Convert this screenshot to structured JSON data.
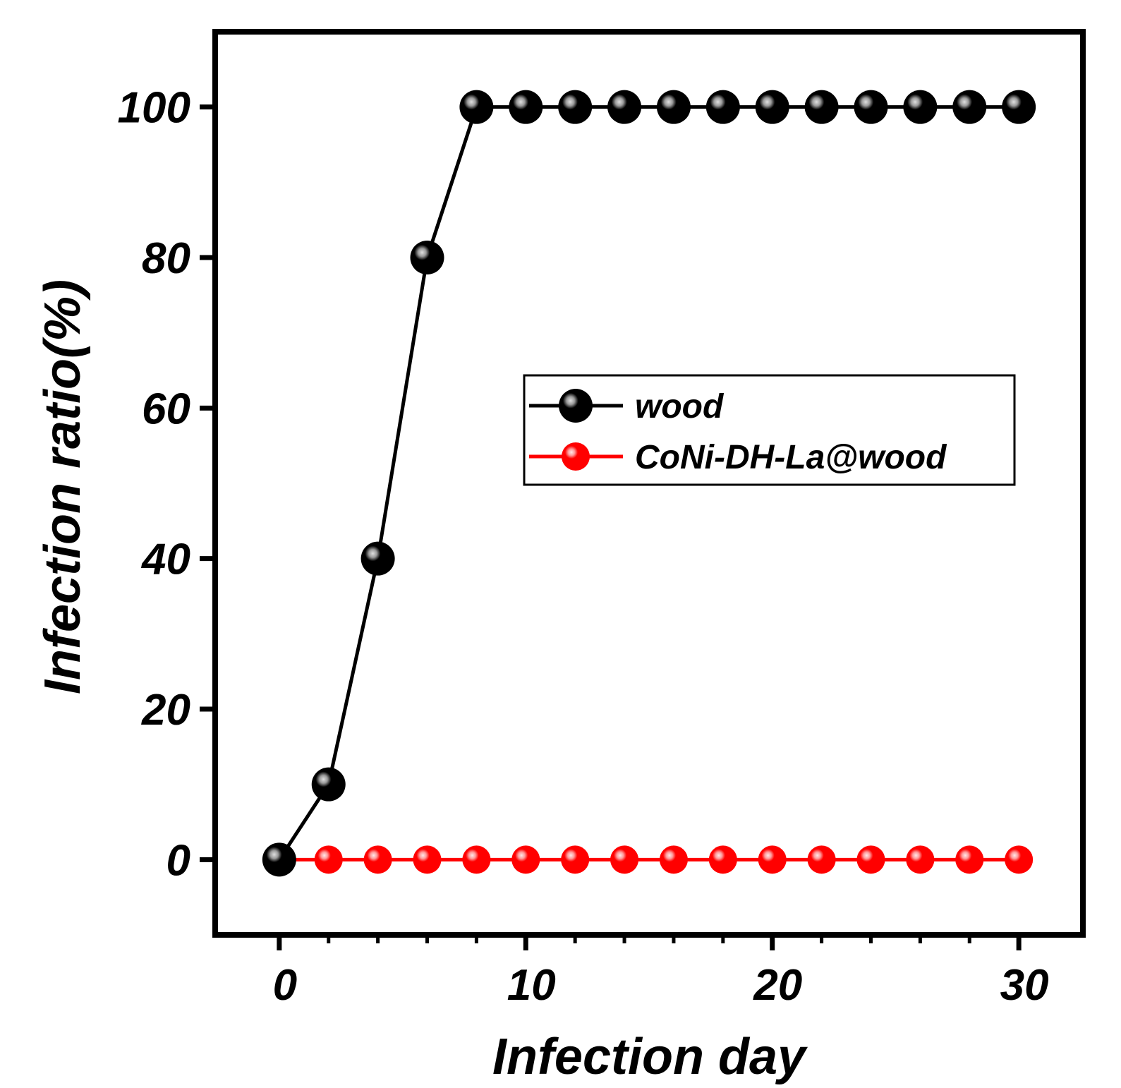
{
  "chart_data": {
    "type": "line",
    "title": "",
    "xlabel": "Infection day",
    "ylabel": "Infection ratio(%)",
    "xlim": [
      -2.6,
      32.6
    ],
    "ylim": [
      -10,
      110
    ],
    "xticks": [
      0,
      10,
      20,
      30
    ],
    "yticks": [
      0,
      20,
      40,
      60,
      80,
      100
    ],
    "legend_position": "center-right",
    "grid": false,
    "x": [
      0,
      2,
      4,
      6,
      8,
      10,
      12,
      14,
      16,
      18,
      20,
      22,
      24,
      26,
      28,
      30
    ],
    "series": [
      {
        "name": "wood",
        "color": "#000000",
        "highlight": "#bdbdbd",
        "values": [
          0,
          10,
          40,
          80,
          100,
          100,
          100,
          100,
          100,
          100,
          100,
          100,
          100,
          100,
          100,
          100
        ]
      },
      {
        "name": "CoNi-DH-La@wood",
        "color": "#ff0000",
        "highlight": "#ffd0d0",
        "values": [
          0,
          0,
          0,
          0,
          0,
          0,
          0,
          0,
          0,
          0,
          0,
          0,
          0,
          0,
          0,
          0
        ]
      }
    ]
  }
}
